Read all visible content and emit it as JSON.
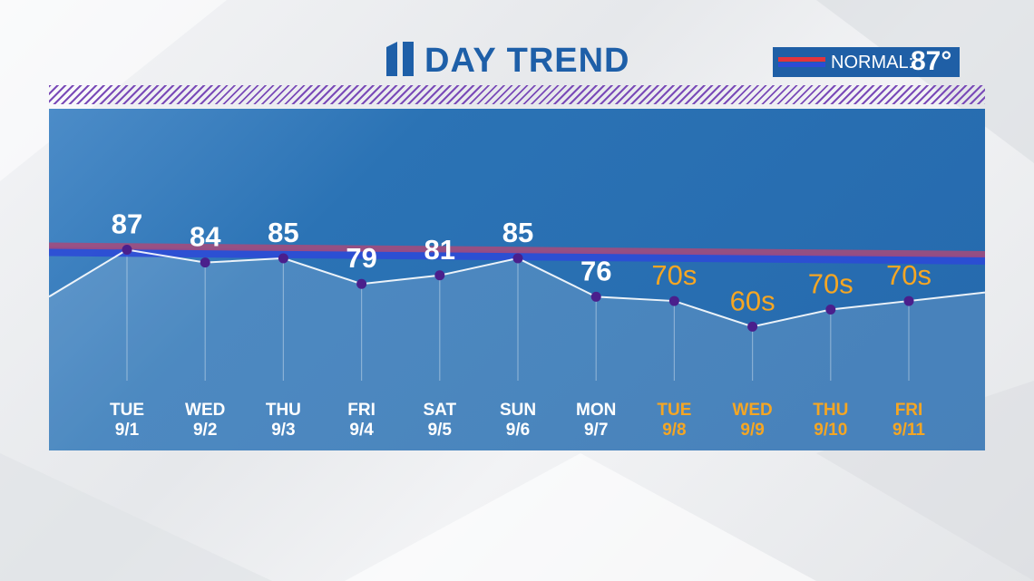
{
  "header": {
    "logo_icon": "channel-11-logo-icon",
    "title": "DAY TREND",
    "normal_label": "NORMAL:",
    "normal_value": "87°"
  },
  "colors": {
    "observed": "#ffffff",
    "forecast": "#f5a623",
    "normal_red": "#e3343c",
    "normal_blue": "#2c4bd6",
    "accent": "#1e5fa8"
  },
  "chart_data": {
    "type": "line",
    "title": "DAY TREND",
    "ylim": [
      40,
      120
    ],
    "grid": false,
    "normal": {
      "label": "NORMAL:",
      "value": "87°",
      "start": 87,
      "end": 85
    },
    "points": [
      {
        "day": "TUE",
        "date": "9/1",
        "value": 87,
        "label": "87",
        "forecast": false
      },
      {
        "day": "WED",
        "date": "9/2",
        "value": 84,
        "label": "84",
        "forecast": false
      },
      {
        "day": "THU",
        "date": "9/3",
        "value": 85,
        "label": "85",
        "forecast": false
      },
      {
        "day": "FRI",
        "date": "9/4",
        "value": 79,
        "label": "79",
        "forecast": false
      },
      {
        "day": "SAT",
        "date": "9/5",
        "value": 81,
        "label": "81",
        "forecast": false
      },
      {
        "day": "SUN",
        "date": "9/6",
        "value": 85,
        "label": "85",
        "forecast": false
      },
      {
        "day": "MON",
        "date": "9/7",
        "value": 76,
        "label": "76",
        "forecast": false
      },
      {
        "day": "TUE",
        "date": "9/8",
        "value": 75,
        "label": "70s",
        "forecast": true
      },
      {
        "day": "WED",
        "date": "9/9",
        "value": 69,
        "label": "60s",
        "forecast": true
      },
      {
        "day": "THU",
        "date": "9/10",
        "value": 73,
        "label": "70s",
        "forecast": true
      },
      {
        "day": "FRI",
        "date": "9/11",
        "value": 75,
        "label": "70s",
        "forecast": true
      }
    ],
    "edge_left": 76,
    "edge_right": 77
  }
}
